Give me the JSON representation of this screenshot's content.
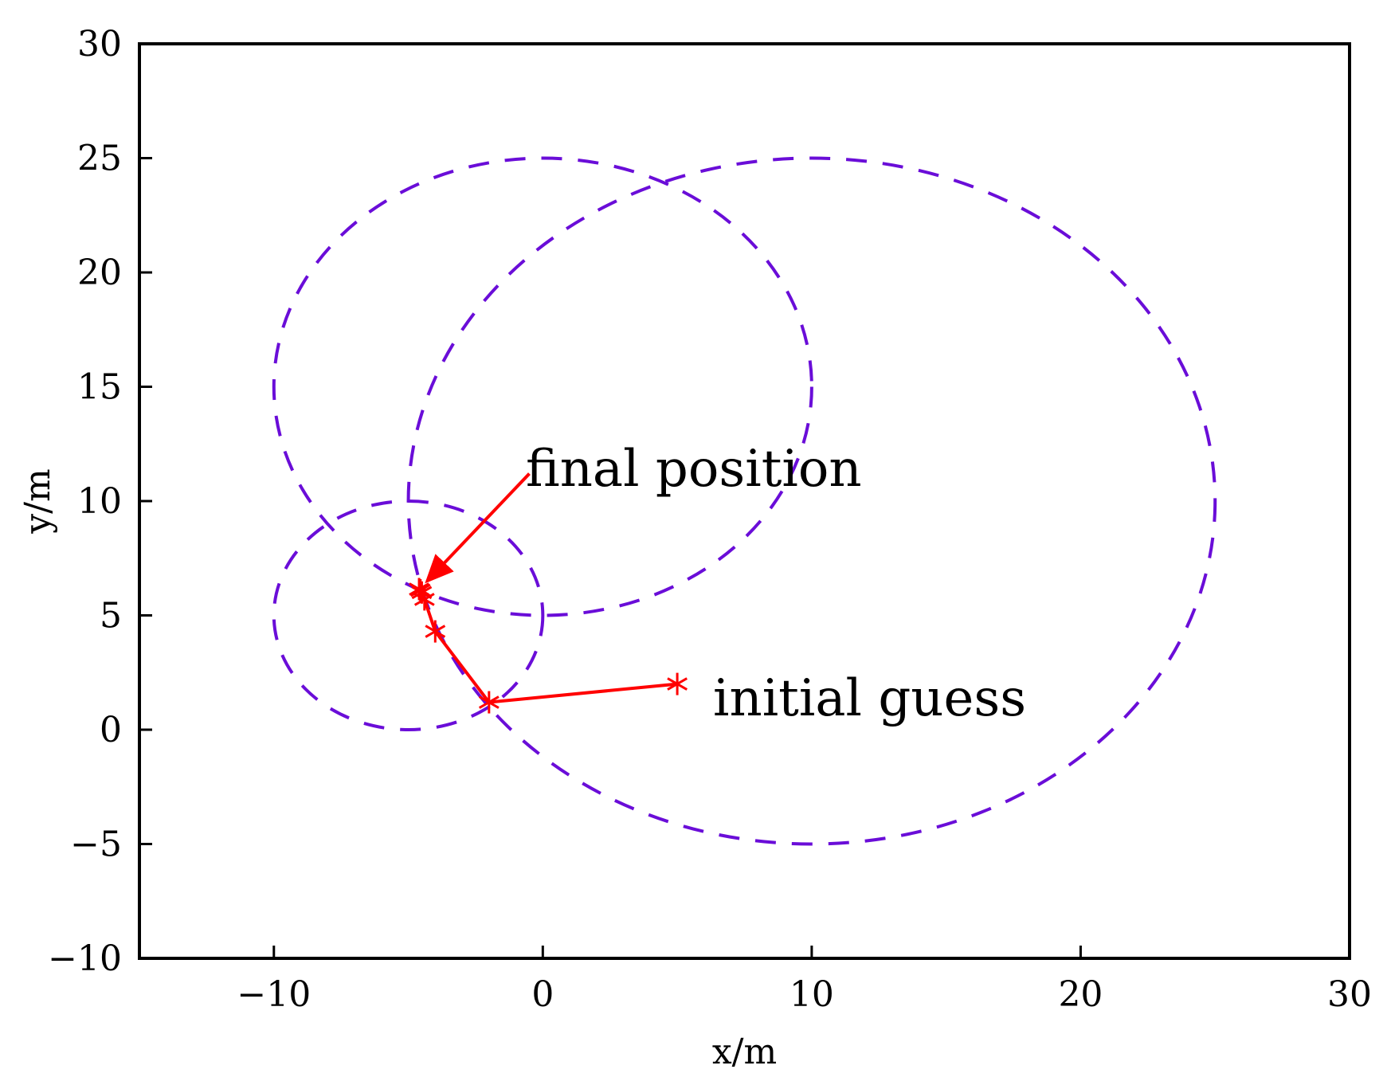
{
  "chart_data": {
    "type": "scatter",
    "title": "",
    "xlabel": "x/m",
    "ylabel": "y/m",
    "xlim": [
      -15,
      30
    ],
    "ylim": [
      -10,
      30
    ],
    "grid": false,
    "xticks": [
      -10,
      0,
      10,
      20,
      30
    ],
    "yticks": [
      -10,
      -5,
      0,
      5,
      10,
      15,
      20,
      25,
      30
    ],
    "xtick_labels": [
      "−10",
      "0",
      "10",
      "20",
      "30"
    ],
    "ytick_labels": [
      "−10",
      "−5",
      "0",
      "5",
      "10",
      "15",
      "20",
      "25",
      "30"
    ],
    "circles": [
      {
        "center": [
          0,
          15
        ],
        "radius": 10
      },
      {
        "center": [
          10,
          10
        ],
        "radius": 15
      },
      {
        "center": [
          -5,
          5
        ],
        "radius": 5
      }
    ],
    "circle_color": "#6a0dd8",
    "iteration_path": {
      "color": "#ff0000",
      "marker": "asterisk",
      "points": [
        [
          5,
          2
        ],
        [
          -2,
          1.2
        ],
        [
          -4,
          4.3
        ],
        [
          -4.4,
          5.7
        ],
        [
          -4.5,
          6.0
        ],
        [
          -4.55,
          6.1
        ],
        [
          -4.6,
          6.15
        ]
      ]
    },
    "annotations": [
      {
        "text": "final position",
        "arrow_from": [
          -0.5,
          11.2
        ],
        "arrow_to": [
          -4.6,
          6.15
        ]
      },
      {
        "text": "initial guess"
      }
    ]
  }
}
